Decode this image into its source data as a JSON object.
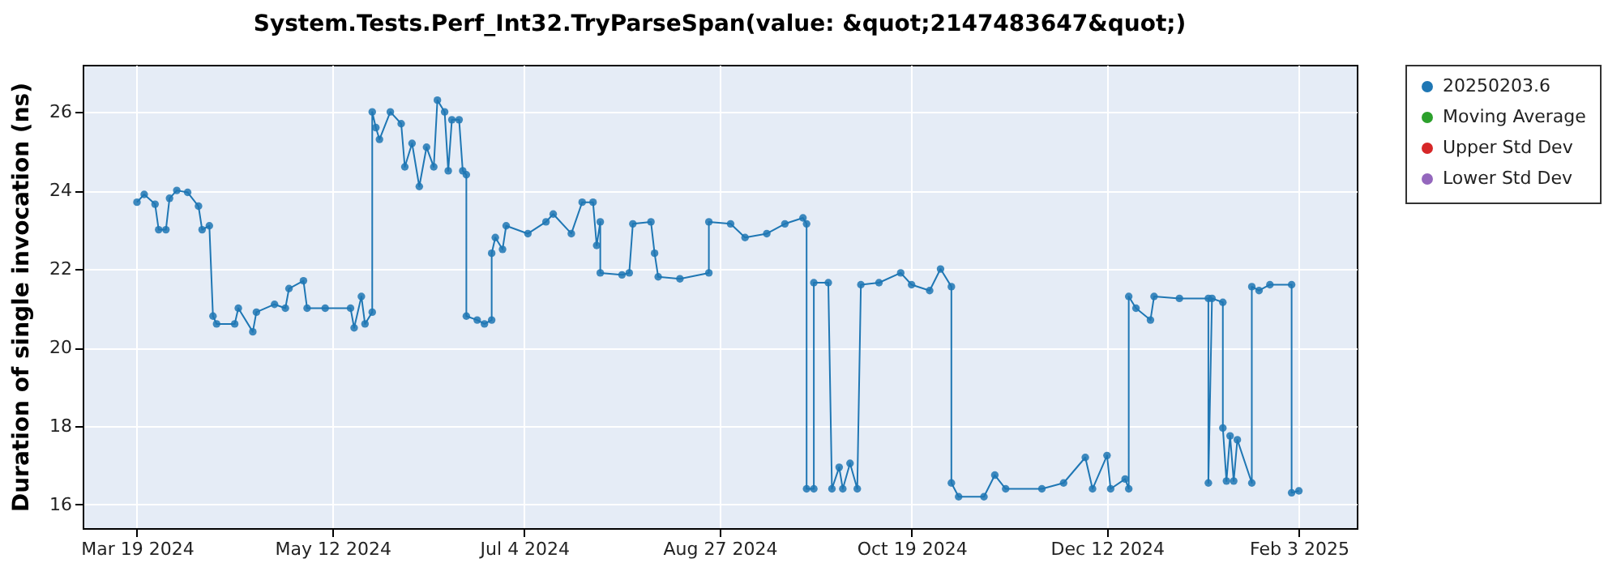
{
  "chart_data": {
    "type": "line",
    "title": "System.Tests.Perf_Int32.TryParseSpan(value: &quot;2147483647&quot;)",
    "ylabel": "Duration of single invocation (ns)",
    "x": [
      "2024-03-19",
      "2024-03-21",
      "2024-03-24",
      "2024-03-25",
      "2024-03-27",
      "2024-03-28",
      "2024-03-30",
      "2024-04-02",
      "2024-04-05",
      "2024-04-06",
      "2024-04-08",
      "2024-04-09",
      "2024-04-10",
      "2024-04-15",
      "2024-04-16",
      "2024-04-20",
      "2024-04-21",
      "2024-04-26",
      "2024-04-29",
      "2024-04-30",
      "2024-05-04",
      "2024-05-05",
      "2024-05-10",
      "2024-05-17",
      "2024-05-18",
      "2024-05-20",
      "2024-05-21",
      "2024-05-23",
      "2024-05-23",
      "2024-05-24",
      "2024-05-25",
      "2024-05-28",
      "2024-05-31",
      "2024-06-01",
      "2024-06-03",
      "2024-06-05",
      "2024-06-07",
      "2024-06-09",
      "2024-06-10",
      "2024-06-12",
      "2024-06-13",
      "2024-06-14",
      "2024-06-16",
      "2024-06-17",
      "2024-06-18",
      "2024-06-18",
      "2024-06-21",
      "2024-06-23",
      "2024-06-25",
      "2024-06-25",
      "2024-06-26",
      "2024-06-28",
      "2024-06-29",
      "2024-07-05",
      "2024-07-10",
      "2024-07-12",
      "2024-07-17",
      "2024-07-20",
      "2024-07-23",
      "2024-07-24",
      "2024-07-25",
      "2024-07-25",
      "2024-07-31",
      "2024-08-02",
      "2024-08-03",
      "2024-08-08",
      "2024-08-09",
      "2024-08-10",
      "2024-08-16",
      "2024-08-24",
      "2024-08-24",
      "2024-08-30",
      "2024-09-03",
      "2024-09-09",
      "2024-09-14",
      "2024-09-19",
      "2024-09-20",
      "2024-09-20",
      "2024-09-22",
      "2024-09-22",
      "2024-09-26",
      "2024-09-27",
      "2024-09-29",
      "2024-09-30",
      "2024-10-02",
      "2024-10-04",
      "2024-10-05",
      "2024-10-10",
      "2024-10-16",
      "2024-10-19",
      "2024-10-24",
      "2024-10-27",
      "2024-10-30",
      "2024-10-30",
      "2024-11-01",
      "2024-11-08",
      "2024-11-11",
      "2024-11-14",
      "2024-11-24",
      "2024-11-30",
      "2024-12-06",
      "2024-12-08",
      "2024-12-12",
      "2024-12-13",
      "2024-12-17",
      "2024-12-18",
      "2024-12-18",
      "2024-12-20",
      "2024-12-24",
      "2024-12-25",
      "2025-01-01",
      "2025-01-09",
      "2025-01-09",
      "2025-01-10",
      "2025-01-13",
      "2025-01-13",
      "2025-01-14",
      "2025-01-15",
      "2025-01-16",
      "2025-01-17",
      "2025-01-21",
      "2025-01-21",
      "2025-01-23",
      "2025-01-26",
      "2025-02-01",
      "2025-02-01",
      "2025-02-03"
    ],
    "series": [
      {
        "name": "20250203.6",
        "color": "#1f77b4",
        "values": [
          23.7,
          23.9,
          23.65,
          23.0,
          23.0,
          23.8,
          24.0,
          23.95,
          23.6,
          23.0,
          23.1,
          20.8,
          20.6,
          20.6,
          21.0,
          20.4,
          20.9,
          21.1,
          21.0,
          21.5,
          21.7,
          21.0,
          21.0,
          21.0,
          20.5,
          21.3,
          20.6,
          20.9,
          26.0,
          25.6,
          25.3,
          26.0,
          25.7,
          24.6,
          25.2,
          24.1,
          25.1,
          24.6,
          26.3,
          26.0,
          24.5,
          25.8,
          25.8,
          24.5,
          24.4,
          20.8,
          20.7,
          20.6,
          20.7,
          22.4,
          22.8,
          22.5,
          23.1,
          22.9,
          23.2,
          23.4,
          22.9,
          23.7,
          23.7,
          22.6,
          23.2,
          21.9,
          21.85,
          21.9,
          23.15,
          23.2,
          22.4,
          21.8,
          21.75,
          21.9,
          23.2,
          23.15,
          22.8,
          22.9,
          23.15,
          23.3,
          23.15,
          16.4,
          16.4,
          21.65,
          21.65,
          16.4,
          16.95,
          16.4,
          17.05,
          16.4,
          21.6,
          21.65,
          21.9,
          21.6,
          21.45,
          22.0,
          21.55,
          16.55,
          16.2,
          16.2,
          16.75,
          16.4,
          16.4,
          16.55,
          17.2,
          16.4,
          17.25,
          16.4,
          16.65,
          16.4,
          21.3,
          21.0,
          20.7,
          21.3,
          21.25,
          21.25,
          16.55,
          21.25,
          21.15,
          17.95,
          16.6,
          17.75,
          16.6,
          17.65,
          16.55,
          21.55,
          21.45,
          21.6,
          21.6,
          16.3,
          16.35
        ]
      },
      {
        "name": "Moving Average",
        "color": "#2ca02c",
        "values": [
          null,
          null,
          null,
          null,
          null,
          null,
          null,
          null,
          null,
          null,
          null,
          null,
          null,
          null,
          null,
          null,
          null,
          null,
          null,
          null,
          null,
          null,
          null,
          null,
          null,
          null,
          null,
          null,
          null,
          null,
          null,
          null,
          null,
          null,
          null,
          null,
          null,
          null,
          null,
          null,
          null,
          null,
          null,
          null,
          null,
          null,
          null,
          null,
          null,
          null,
          null,
          null,
          null,
          null,
          null,
          null,
          null,
          null,
          null,
          null,
          null,
          null,
          null,
          null,
          null,
          null,
          null,
          null,
          null,
          null,
          null,
          null,
          null,
          null,
          null,
          null,
          null,
          null,
          null,
          null,
          null,
          null,
          null,
          null,
          null,
          null,
          null,
          null,
          null,
          null,
          null,
          null,
          null,
          null,
          null,
          null,
          null,
          null,
          null,
          null,
          null,
          null,
          null,
          null,
          null,
          null,
          null,
          null,
          null,
          null,
          null,
          null,
          null,
          null,
          null,
          null,
          null,
          null,
          null,
          null,
          null,
          null,
          null,
          null,
          null,
          null,
          null
        ]
      },
      {
        "name": "Upper Std Dev",
        "color": "#d62728",
        "values": [
          null,
          null,
          null,
          null,
          null,
          null,
          null,
          null,
          null,
          null,
          null,
          null,
          null,
          null,
          null,
          null,
          null,
          null,
          null,
          null,
          null,
          null,
          null,
          null,
          null,
          null,
          null,
          null,
          null,
          null,
          null,
          null,
          null,
          null,
          null,
          null,
          null,
          null,
          null,
          null,
          null,
          null,
          null,
          null,
          null,
          null,
          null,
          null,
          null,
          null,
          null,
          null,
          null,
          null,
          null,
          null,
          null,
          null,
          null,
          null,
          null,
          null,
          null,
          null,
          null,
          null,
          null,
          null,
          null,
          null,
          null,
          null,
          null,
          null,
          null,
          null,
          null,
          null,
          null,
          null,
          null,
          null,
          null,
          null,
          null,
          null,
          null,
          null,
          null,
          null,
          null,
          null,
          null,
          null,
          null,
          null,
          null,
          null,
          null,
          null,
          null,
          null,
          null,
          null,
          null,
          null,
          null,
          null,
          null,
          null,
          null,
          null,
          null,
          null,
          null,
          null,
          null,
          null,
          null,
          null,
          null,
          null,
          null,
          null,
          null,
          null,
          null
        ]
      },
      {
        "name": "Lower Std Dev",
        "color": "#9467bd",
        "values": [
          null,
          null,
          null,
          null,
          null,
          null,
          null,
          null,
          null,
          null,
          null,
          null,
          null,
          null,
          null,
          null,
          null,
          null,
          null,
          null,
          null,
          null,
          null,
          null,
          null,
          null,
          null,
          null,
          null,
          null,
          null,
          null,
          null,
          null,
          null,
          null,
          null,
          null,
          null,
          null,
          null,
          null,
          null,
          null,
          null,
          null,
          null,
          null,
          null,
          null,
          null,
          null,
          null,
          null,
          null,
          null,
          null,
          null,
          null,
          null,
          null,
          null,
          null,
          null,
          null,
          null,
          null,
          null,
          null,
          null,
          null,
          null,
          null,
          null,
          null,
          null,
          null,
          null,
          null,
          null,
          null,
          null,
          null,
          null,
          null,
          null,
          null,
          null,
          null,
          null,
          null,
          null,
          null,
          null,
          null,
          null,
          null,
          null,
          null,
          null,
          null,
          null,
          null,
          null,
          null,
          null,
          null,
          null,
          null,
          null,
          null,
          null,
          null,
          null,
          null,
          null,
          null,
          null,
          null,
          null,
          null,
          null,
          null,
          null,
          null,
          null,
          null
        ]
      }
    ],
    "xlim": [
      "2024-03-04",
      "2025-02-19"
    ],
    "xticks": [
      {
        "value": "2024-03-19",
        "label": "Mar 19 2024"
      },
      {
        "value": "2024-05-12",
        "label": "May 12 2024"
      },
      {
        "value": "2024-07-04",
        "label": "Jul 4 2024"
      },
      {
        "value": "2024-08-27",
        "label": "Aug 27 2024"
      },
      {
        "value": "2024-10-19",
        "label": "Oct 19 2024"
      },
      {
        "value": "2024-12-12",
        "label": "Dec 12 2024"
      },
      {
        "value": "2025-02-03",
        "label": "Feb 3 2025"
      }
    ],
    "ylim": [
      15.4,
      27.2
    ],
    "yticks": [
      16,
      18,
      20,
      22,
      24,
      26
    ],
    "grid": true,
    "legend": "right",
    "marker": "circle",
    "line_style": "solid"
  }
}
